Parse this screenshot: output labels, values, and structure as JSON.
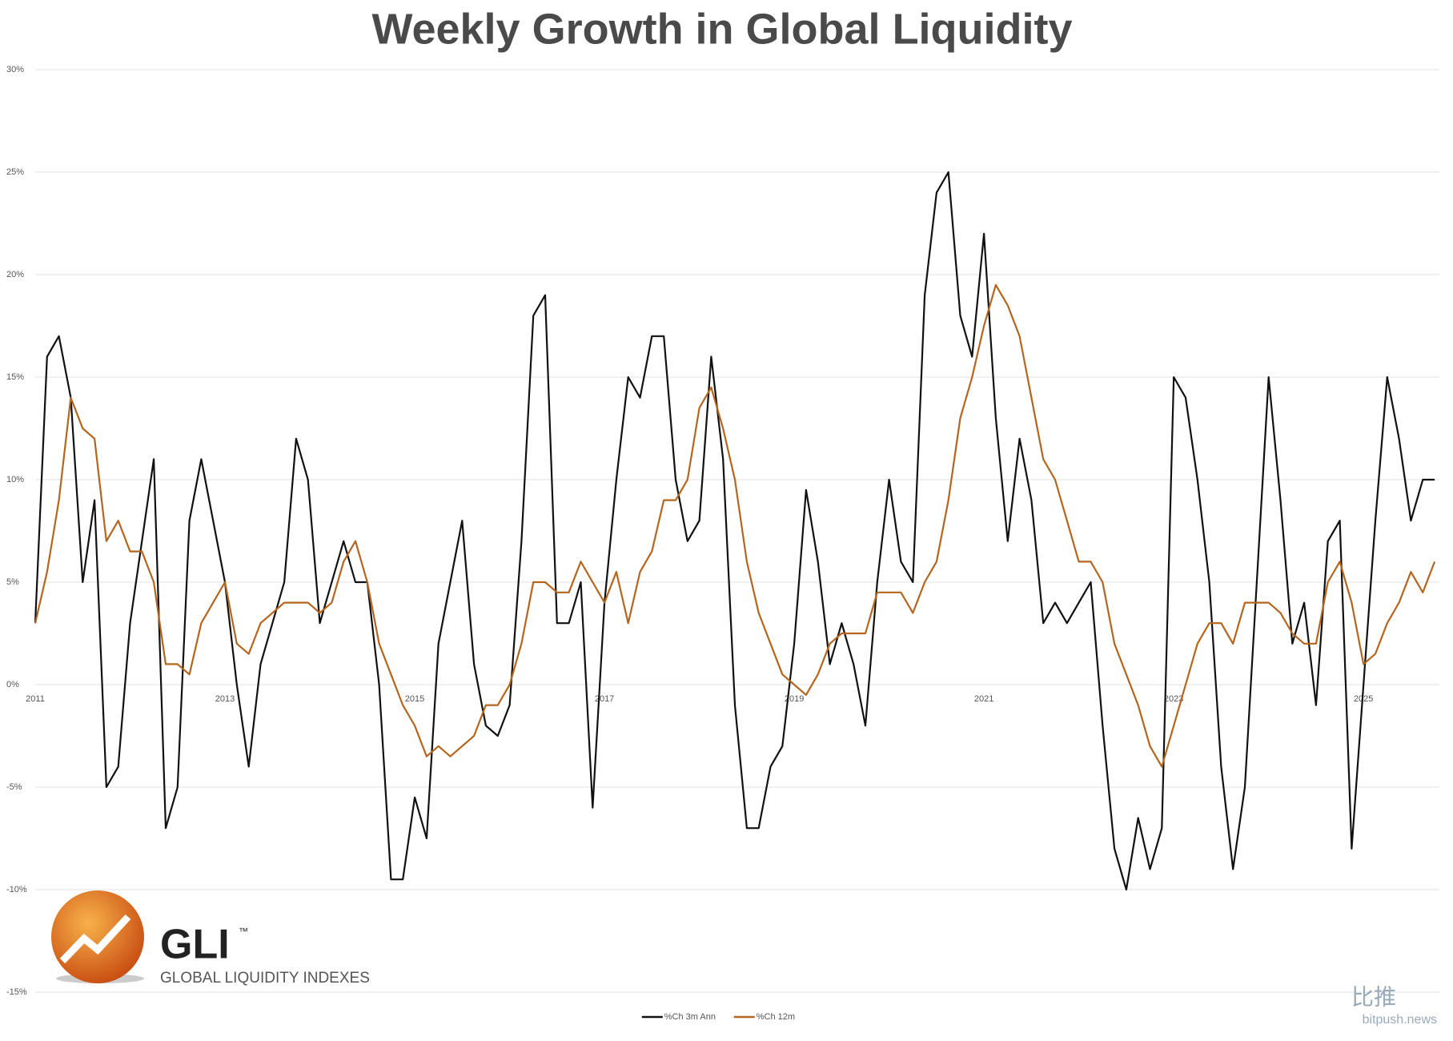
{
  "chart_data": {
    "type": "line",
    "title": "Weekly Growth in Global Liquidity",
    "x": [
      2011,
      2011.125,
      2011.25,
      2011.375,
      2011.5,
      2011.625,
      2011.75,
      2011.875,
      2012,
      2012.125,
      2012.25,
      2012.375,
      2012.5,
      2012.625,
      2012.75,
      2012.875,
      2013,
      2013.125,
      2013.25,
      2013.375,
      2013.5,
      2013.625,
      2013.75,
      2013.875,
      2014,
      2014.125,
      2014.25,
      2014.375,
      2014.5,
      2014.625,
      2014.75,
      2014.875,
      2015,
      2015.125,
      2015.25,
      2015.375,
      2015.5,
      2015.625,
      2015.75,
      2015.875,
      2016,
      2016.125,
      2016.25,
      2016.375,
      2016.5,
      2016.625,
      2016.75,
      2016.875,
      2017,
      2017.125,
      2017.25,
      2017.375,
      2017.5,
      2017.625,
      2017.75,
      2017.875,
      2018,
      2018.125,
      2018.25,
      2018.375,
      2018.5,
      2018.625,
      2018.75,
      2018.875,
      2019,
      2019.125,
      2019.25,
      2019.375,
      2019.5,
      2019.625,
      2019.75,
      2019.875,
      2020,
      2020.125,
      2020.25,
      2020.375,
      2020.5,
      2020.625,
      2020.75,
      2020.875,
      2021,
      2021.125,
      2021.25,
      2021.375,
      2021.5,
      2021.625,
      2021.75,
      2021.875,
      2022,
      2022.125,
      2022.25,
      2022.375,
      2022.5,
      2022.625,
      2022.75,
      2022.875,
      2023,
      2023.125,
      2023.25,
      2023.375,
      2023.5,
      2023.625,
      2023.75,
      2023.875,
      2024,
      2024.125,
      2024.25,
      2024.375,
      2024.5,
      2024.625,
      2024.75,
      2024.875,
      2025,
      2025.125,
      2025.25,
      2025.375,
      2025.5,
      2025.625,
      2025.75
    ],
    "series": [
      {
        "name": "%Ch 3m Ann",
        "color": "#111111",
        "values": [
          3,
          16,
          17,
          14,
          5,
          9,
          -5,
          -4,
          3,
          7,
          11,
          -7,
          -5,
          8,
          11,
          8,
          5,
          0,
          -4,
          1,
          3,
          5,
          12,
          10,
          3,
          5,
          7,
          5,
          5,
          0,
          -9.5,
          -9.5,
          -5.5,
          -7.5,
          2,
          5,
          8,
          1,
          -2,
          -2.5,
          -1,
          7,
          18,
          19,
          3,
          3,
          5,
          -6,
          4,
          10,
          15,
          14,
          17,
          17,
          10,
          7,
          8,
          16,
          11,
          -1,
          -7,
          -7,
          -4,
          -3,
          2,
          9.5,
          6,
          1,
          3,
          1,
          -2,
          5,
          10,
          6,
          5,
          19,
          24,
          25,
          18,
          16,
          22,
          13,
          7,
          12,
          9,
          3,
          4,
          3,
          4,
          5,
          -2,
          -8,
          -10,
          -6.5,
          -9,
          -7,
          15,
          14,
          10,
          5,
          -4,
          -9,
          -5,
          5,
          15,
          9,
          2,
          4,
          -1,
          7,
          8,
          -8,
          0,
          8,
          15,
          12,
          8,
          10,
          10
        ]
      },
      {
        "name": "%Ch 12m",
        "color": "#b5651d",
        "values": [
          3,
          5.5,
          9,
          14,
          12.5,
          12,
          7,
          8,
          6.5,
          6.5,
          5,
          1,
          1,
          0.5,
          3,
          4,
          5,
          2,
          1.5,
          3,
          3.5,
          4,
          4,
          4,
          3.5,
          4,
          6,
          7,
          5,
          2,
          0.5,
          -1,
          -2,
          -3.5,
          -3,
          -3.5,
          -3,
          -2.5,
          -1,
          -1,
          0,
          2,
          5,
          5,
          4.5,
          4.5,
          6,
          5,
          4,
          5.5,
          3,
          5.5,
          6.5,
          9,
          9,
          10,
          13.5,
          14.5,
          12.5,
          10,
          6,
          3.5,
          2,
          0.5,
          0,
          -0.5,
          0.5,
          2,
          2.5,
          2.5,
          2.5,
          4.5,
          4.5,
          4.5,
          3.5,
          5,
          6,
          9,
          13,
          15,
          17.5,
          19.5,
          18.5,
          17,
          14,
          11,
          10,
          8,
          6,
          6,
          5,
          2,
          0.5,
          -1,
          -3,
          -4,
          -2,
          0,
          2,
          3,
          3,
          2,
          4,
          4,
          4,
          3.5,
          2.5,
          2,
          2,
          5,
          6,
          4,
          1,
          1.5,
          3,
          4,
          5.5,
          4.5,
          6
        ]
      }
    ],
    "xlim": [
      2011,
      2025.8
    ],
    "xticks": [
      2011,
      2013,
      2015,
      2017,
      2019,
      2021,
      2023,
      2025
    ],
    "ylim": [
      -15,
      30
    ],
    "yticks": [
      {
        "value": -15,
        "label": "-15%"
      },
      {
        "value": -10,
        "label": "-10%"
      },
      {
        "value": -5,
        "label": "-5%"
      },
      {
        "value": 0,
        "label": "0%"
      },
      {
        "value": 5,
        "label": "5%"
      },
      {
        "value": 10,
        "label": "10%"
      },
      {
        "value": 15,
        "label": "15%"
      },
      {
        "value": 20,
        "label": "20%"
      },
      {
        "value": 25,
        "label": "25%"
      },
      {
        "value": 30,
        "label": "30%"
      }
    ],
    "grid": true,
    "legend": "bottom"
  },
  "logo": {
    "name": "GLI",
    "mark": "™",
    "subtitle": "GLOBAL LIQUIDITY INDEXES"
  },
  "watermark": {
    "name": "比推",
    "site": "bitpush.news"
  }
}
